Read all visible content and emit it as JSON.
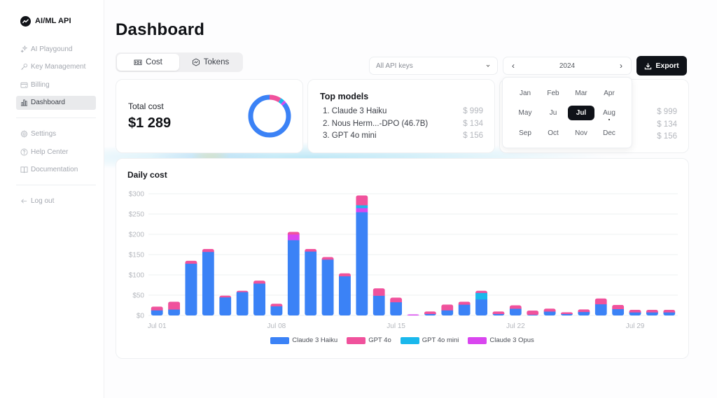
{
  "brand": {
    "name": "AI/ML API"
  },
  "sidebar": {
    "items": [
      {
        "label": "AI Playgound",
        "icon": "sparkles-icon"
      },
      {
        "label": "Key Management",
        "icon": "key-icon"
      },
      {
        "label": "Billing",
        "icon": "credit-card-icon"
      },
      {
        "label": "Dashboard",
        "icon": "bar-chart-icon",
        "active": true
      }
    ],
    "secondary": [
      {
        "label": "Settings",
        "icon": "gear-icon"
      },
      {
        "label": "Help Center",
        "icon": "help-circle-icon"
      },
      {
        "label": "Documentation",
        "icon": "book-icon"
      }
    ],
    "logout": {
      "label": "Log out",
      "icon": "arrow-left-icon"
    }
  },
  "header": {
    "title": "Dashboard",
    "tabs": [
      {
        "label": "Cost",
        "icon": "money-icon",
        "active": true
      },
      {
        "label": "Tokens",
        "icon": "activity-icon",
        "active": false
      }
    ],
    "api_key_select": {
      "value": "All API keys"
    },
    "year_picker": {
      "year": "2024"
    },
    "export_label": "Export"
  },
  "month_picker": {
    "months": [
      "Jan",
      "Feb",
      "Mar",
      "Apr",
      "May",
      "Ju",
      "Jul",
      "Aug",
      "Sep",
      "Oct",
      "Nov",
      "Dec"
    ],
    "selected": "Jul",
    "current_marker": "Aug"
  },
  "total_cost": {
    "label": "Total cost",
    "value": "$1 289",
    "donut": [
      {
        "name": "Claude 3 Haiku",
        "share": 0.86,
        "color": "#3b82f6"
      },
      {
        "name": "GPT 4o",
        "share": 0.09,
        "color": "#f0529c"
      },
      {
        "name": "GPT 4o mini",
        "share": 0.03,
        "color": "#1ab8ec"
      },
      {
        "name": "Claude 3 Opus",
        "share": 0.02,
        "color": "#d946ef"
      }
    ]
  },
  "top_models": {
    "title": "Top models",
    "items": [
      {
        "rank": "1.",
        "name": "Claude 3 Haiku",
        "cost": "$ 999"
      },
      {
        "rank": "2.",
        "name": "Nous Herm...-DPO (46.7B)",
        "cost": "$ 134"
      },
      {
        "rank": "3.",
        "name": "GPT 4o mini",
        "cost": "$ 156"
      }
    ],
    "second_card_costs": [
      "$ 999",
      "$ 134",
      "$ 156"
    ]
  },
  "chart": {
    "title": "Daily cost"
  },
  "chart_data": {
    "type": "bar",
    "stacked": true,
    "title": "Daily cost",
    "xlabel": "",
    "ylabel": "",
    "ylim": [
      0,
      300
    ],
    "yticks": [
      "$0",
      "$50",
      "$100",
      "$150",
      "$200",
      "$250",
      "$300"
    ],
    "xtick_labels": {
      "0": "Jul 01",
      "7": "Jul 08",
      "14": "Jul 15",
      "21": "Jul 22",
      "28": "Jul 29"
    },
    "grid": true,
    "legend_position": "bottom",
    "categories": [
      "Jul 01",
      "Jul 02",
      "Jul 03",
      "Jul 04",
      "Jul 05",
      "Jul 06",
      "Jul 07",
      "Jul 08",
      "Jul 09",
      "Jul 10",
      "Jul 11",
      "Jul 12",
      "Jul 13",
      "Jul 14",
      "Jul 15",
      "Jul 16",
      "Jul 17",
      "Jul 18",
      "Jul 19",
      "Jul 20",
      "Jul 21",
      "Jul 22",
      "Jul 23",
      "Jul 24",
      "Jul 25",
      "Jul 26",
      "Jul 27",
      "Jul 28",
      "Jul 29",
      "Jul 30",
      "Jul 31"
    ],
    "series": [
      {
        "name": "Claude 3 Haiku",
        "color": "#3b82f6",
        "values": [
          13,
          15,
          128,
          157,
          45,
          58,
          79,
          23,
          186,
          158,
          138,
          97,
          255,
          49,
          33,
          0,
          4,
          13,
          27,
          40,
          4,
          17,
          2,
          10,
          4,
          9,
          28,
          16,
          8,
          8,
          8
        ]
      },
      {
        "name": "GPT 4o",
        "color": "#f0529c",
        "values": [
          9,
          19,
          7,
          7,
          4,
          3,
          7,
          6,
          6,
          6,
          6,
          7,
          24,
          18,
          11,
          0,
          6,
          14,
          7,
          5,
          6,
          8,
          10,
          7,
          4,
          6,
          14,
          10,
          6,
          6,
          6
        ]
      },
      {
        "name": "GPT 4o mini",
        "color": "#1ab8ec",
        "values": [
          0,
          0,
          0,
          0,
          0,
          0,
          0,
          0,
          0,
          0,
          0,
          0,
          7,
          0,
          0,
          0,
          0,
          0,
          0,
          16,
          0,
          0,
          0,
          0,
          0,
          0,
          0,
          0,
          0,
          0,
          0
        ]
      },
      {
        "name": "Claude 3 Opus",
        "color": "#d946ef",
        "values": [
          0,
          0,
          0,
          0,
          0,
          0,
          0,
          0,
          14,
          0,
          0,
          0,
          10,
          0,
          0,
          2,
          0,
          0,
          0,
          0,
          0,
          0,
          0,
          0,
          0,
          0,
          0,
          0,
          0,
          0,
          0
        ]
      }
    ]
  }
}
